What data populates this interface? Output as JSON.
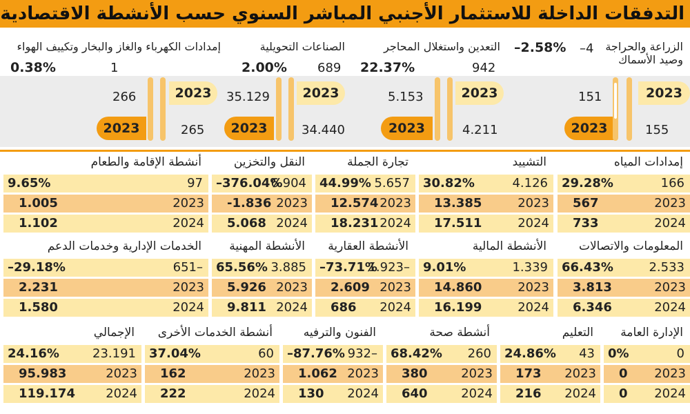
{
  "title": "التدفقات الداخلة للاستثمار الأجنبي المباشر السنوي حسب الأنشطة الاقتصادية بـ المليون ريال",
  "top": [
    {
      "label": "الزراعة والحراجة وصيد الأسماك",
      "change": "–4",
      "pct": "–2.58%",
      "v2023": "151",
      "v2024": "155",
      "year_a": "2023",
      "year_b": "2023"
    },
    {
      "label": "التعدين واستغلال المحاجر",
      "change": "942",
      "pct": "22.37%",
      "v2023": "5.153",
      "v2024": "4.211",
      "year_a": "2023",
      "year_b": "2023"
    },
    {
      "label": "الصناعات التحويلية",
      "change": "689",
      "pct": "2.00%",
      "v2023": "35.129",
      "v2024": "34.440",
      "year_a": "2023",
      "year_b": "2023"
    },
    {
      "label": "إمدادات الكهرباء والغاز والبخار وتكييف الهواء",
      "change": "1",
      "pct": "0.38%",
      "v2023": "266",
      "v2024": "265",
      "year_a": "2023",
      "year_b": "2023"
    }
  ],
  "rows": [
    [
      {
        "label": "إمدادات المياه",
        "change": "166",
        "pct": "29.28%",
        "y1": "2023",
        "v1": "567",
        "y2": "2024",
        "v2": "733"
      },
      {
        "label": "التشييد",
        "change": "4.126",
        "pct": "30.82%",
        "y1": "2023",
        "v1": "13.385",
        "y2": "2024",
        "v2": "17.511"
      },
      {
        "label": "تجارة الجملة",
        "change": "5.657",
        "pct": "44.99%",
        "y1": "2023",
        "v1": "12.574",
        "y2": "2024",
        "v2": "18.231"
      },
      {
        "label": "النقل والتخزين",
        "change": "6.904",
        "pct": "–376.04%",
        "y1": "2023",
        "v1": "-1.836",
        "y2": "2024",
        "v2": "5.068"
      },
      {
        "label": "أنشطة الإقامة والطعام",
        "change": "97",
        "pct": "9.65%",
        "y1": "2023",
        "v1": "1.005",
        "y2": "2024",
        "v2": "1.102"
      }
    ],
    [
      {
        "label": "المعلومات والاتصالات",
        "change": "2.533",
        "pct": "66.43%",
        "y1": "2023",
        "v1": "3.813",
        "y2": "2024",
        "v2": "6.346"
      },
      {
        "label": "الأنشطة المالية",
        "change": "1.339",
        "pct": "9.01%",
        "y1": "2023",
        "v1": "14.860",
        "y2": "2024",
        "v2": "16.199"
      },
      {
        "label": "الأنشطة العقارية",
        "change": "1.923–",
        "pct": "–73.71%",
        "y1": "2023",
        "v1": "2.609",
        "y2": "2024",
        "v2": "686"
      },
      {
        "label": "الأنشطة المهنية",
        "change": "3.885",
        "pct": "65.56%",
        "y1": "2023",
        "v1": "5.926",
        "y2": "2024",
        "v2": "9.811"
      },
      {
        "label": "الخدمات الإدارية وخدمات الدعم",
        "change": "651–",
        "pct": "–29.18%",
        "y1": "2023",
        "v1": "2.231",
        "y2": "2024",
        "v2": "1.580"
      }
    ]
  ],
  "bottom": [
    {
      "label": "الإدارة العامة",
      "change": "0",
      "pct": "0%",
      "y1": "2023",
      "v1": "0",
      "y2": "2024",
      "v2": "0"
    },
    {
      "label": "التعليم",
      "change": "43",
      "pct": "24.86%",
      "y1": "2023",
      "v1": "173",
      "y2": "2024",
      "v2": "216"
    },
    {
      "label": "أنشطة صحة",
      "change": "260",
      "pct": "68.42%",
      "y1": "2023",
      "v1": "380",
      "y2": "2024",
      "v2": "640"
    },
    {
      "label": "الفنون والترفيه",
      "change": "932–",
      "pct": "–87.76%",
      "y1": "2023",
      "v1": "1.062",
      "y2": "2024",
      "v2": "130"
    },
    {
      "label": "أنشطة الخدمات الأخرى",
      "change": "60",
      "pct": "37.04%",
      "y1": "2023",
      "v1": "162",
      "y2": "2024",
      "v2": "222"
    },
    {
      "label": "الإجمالي",
      "change": "23.191",
      "pct": "24.16%",
      "y1": "2023",
      "v1": "95.983",
      "y2": "2024",
      "v2": "119.174"
    }
  ]
}
